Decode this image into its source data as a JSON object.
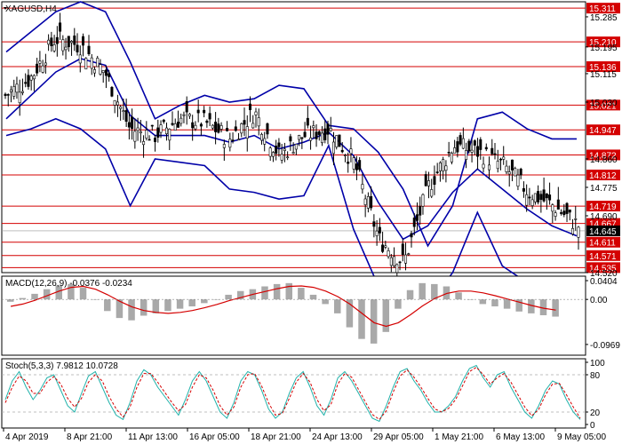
{
  "chart_data": [
    {
      "type": "candlestick",
      "title": "XAGUSD,H4",
      "symbol": "XAGUSD",
      "timeframe": "H4",
      "ylim": [
        14.52,
        15.33
      ],
      "y_ticks": [
        "15.285",
        "15.195",
        "15.115",
        "15.030",
        "14.860",
        "14.775",
        "14.690",
        "14.520"
      ],
      "x_labels": [
        "4 Apr 2019",
        "8 Apr 21:00",
        "11 Apr 13:00",
        "16 Apr 05:00",
        "18 Apr 21:00",
        "24 Apr 13:00",
        "29 Apr 05:00",
        "1 May 21:00",
        "6 May 13:00",
        "9 May 05:00"
      ],
      "levels": [
        {
          "value": 15.311,
          "label": "15.311"
        },
        {
          "value": 15.21,
          "label": "15.210"
        },
        {
          "value": 15.136,
          "label": "15.136"
        },
        {
          "value": 15.021,
          "label": "15.021"
        },
        {
          "value": 14.947,
          "label": "14.947"
        },
        {
          "value": 14.872,
          "label": "14.872"
        },
        {
          "value": 14.812,
          "label": "14.812"
        },
        {
          "value": 14.719,
          "label": "14.719"
        },
        {
          "value": 14.667,
          "label": "14.667"
        },
        {
          "value": 14.611,
          "label": "14.611"
        },
        {
          "value": 14.571,
          "label": "14.571"
        },
        {
          "value": 14.535,
          "label": "14.535"
        }
      ],
      "current_price": "14.645",
      "bollinger": {
        "upper": [
          15.18,
          15.24,
          15.3,
          15.33,
          15.3,
          15.15,
          14.98,
          15.02,
          15.05,
          15.03,
          15.04,
          15.08,
          15.07,
          14.96,
          14.95,
          14.88,
          14.77,
          14.6,
          14.72,
          14.98,
          15.0,
          14.95,
          14.92,
          14.92
        ],
        "middle": [
          14.98,
          15.05,
          15.12,
          15.16,
          15.14,
          14.99,
          14.93,
          14.93,
          14.93,
          14.91,
          14.93,
          14.89,
          14.91,
          14.94,
          14.87,
          14.73,
          14.62,
          14.66,
          14.76,
          14.83,
          14.77,
          14.71,
          14.66,
          14.63
        ],
        "lower": [
          14.93,
          14.95,
          14.98,
          14.95,
          14.89,
          14.72,
          14.86,
          14.85,
          14.84,
          14.77,
          14.76,
          14.74,
          14.75,
          14.9,
          14.65,
          14.48,
          14.4,
          14.42,
          14.52,
          14.7,
          14.54,
          14.49,
          14.43,
          14.4
        ]
      }
    },
    {
      "type": "histogram",
      "title": "MACD(12,26,9) -0.0376 -0.0234",
      "ylim": [
        -0.12,
        0.05
      ],
      "y_ticks": [
        "0.0404",
        "0.00",
        "-0.0969"
      ],
      "histogram": [
        -0.005,
        0.003,
        0.012,
        0.022,
        0.03,
        0.033,
        0.025,
        0.0,
        -0.025,
        -0.04,
        -0.045,
        -0.035,
        -0.03,
        -0.025,
        -0.02,
        -0.015,
        -0.008,
        0.0,
        0.01,
        0.018,
        0.022,
        0.028,
        0.033,
        0.035,
        0.025,
        0.01,
        -0.01,
        -0.03,
        -0.06,
        -0.085,
        -0.095,
        -0.07,
        -0.02,
        0.02,
        0.035,
        0.033,
        0.028,
        0.015,
        0.0,
        -0.01,
        -0.015,
        -0.02,
        -0.026,
        -0.03,
        -0.034,
        -0.037
      ],
      "signal": [
        -0.015,
        -0.01,
        -0.002,
        0.008,
        0.018,
        0.026,
        0.028,
        0.022,
        0.01,
        -0.004,
        -0.016,
        -0.024,
        -0.028,
        -0.03,
        -0.028,
        -0.024,
        -0.018,
        -0.011,
        -0.003,
        0.004,
        0.011,
        0.017,
        0.023,
        0.028,
        0.029,
        0.026,
        0.018,
        0.006,
        -0.01,
        -0.03,
        -0.05,
        -0.058,
        -0.05,
        -0.033,
        -0.014,
        0.002,
        0.013,
        0.018,
        0.018,
        0.014,
        0.008,
        0.001,
        -0.006,
        -0.013,
        -0.019,
        -0.023
      ]
    },
    {
      "type": "line",
      "title": "Stoch(5,3,3) 7.9812 10.0728",
      "ylim": [
        0,
        100
      ],
      "y_ticks": [
        "100",
        "80",
        "20",
        "0"
      ],
      "series": [
        {
          "values": [
            40,
            70,
            85,
            60,
            40,
            55,
            75,
            80,
            55,
            30,
            20,
            50,
            78,
            85,
            60,
            35,
            15,
            8,
            35,
            70,
            88,
            80,
            60,
            45,
            30,
            15,
            40,
            70,
            85,
            70,
            45,
            20,
            10,
            35,
            70,
            85,
            80,
            55,
            25,
            10,
            20,
            50,
            75,
            85,
            60,
            30,
            15,
            40,
            75,
            85,
            70,
            50,
            30,
            10,
            5,
            30,
            60,
            85,
            90,
            70,
            55,
            35,
            20,
            20,
            30,
            45,
            70,
            90,
            95,
            75,
            60,
            80,
            85,
            60,
            40,
            20,
            10,
            30,
            55,
            70,
            65,
            40,
            20,
            8
          ]
        },
        {
          "values": [
            35,
            60,
            78,
            70,
            50,
            50,
            68,
            77,
            65,
            42,
            28,
            42,
            68,
            80,
            70,
            45,
            25,
            12,
            28,
            60,
            82,
            82,
            68,
            52,
            36,
            22,
            32,
            60,
            80,
            75,
            55,
            30,
            15,
            28,
            60,
            80,
            82,
            62,
            35,
            15,
            18,
            42,
            68,
            82,
            68,
            40,
            22,
            32,
            65,
            82,
            76,
            56,
            36,
            16,
            8,
            22,
            52,
            78,
            88,
            76,
            60,
            42,
            25,
            20,
            26,
            40,
            62,
            85,
            92,
            80,
            65,
            75,
            82,
            68,
            48,
            28,
            14,
            24,
            48,
            65,
            66,
            48,
            28,
            10
          ]
        }
      ]
    }
  ]
}
